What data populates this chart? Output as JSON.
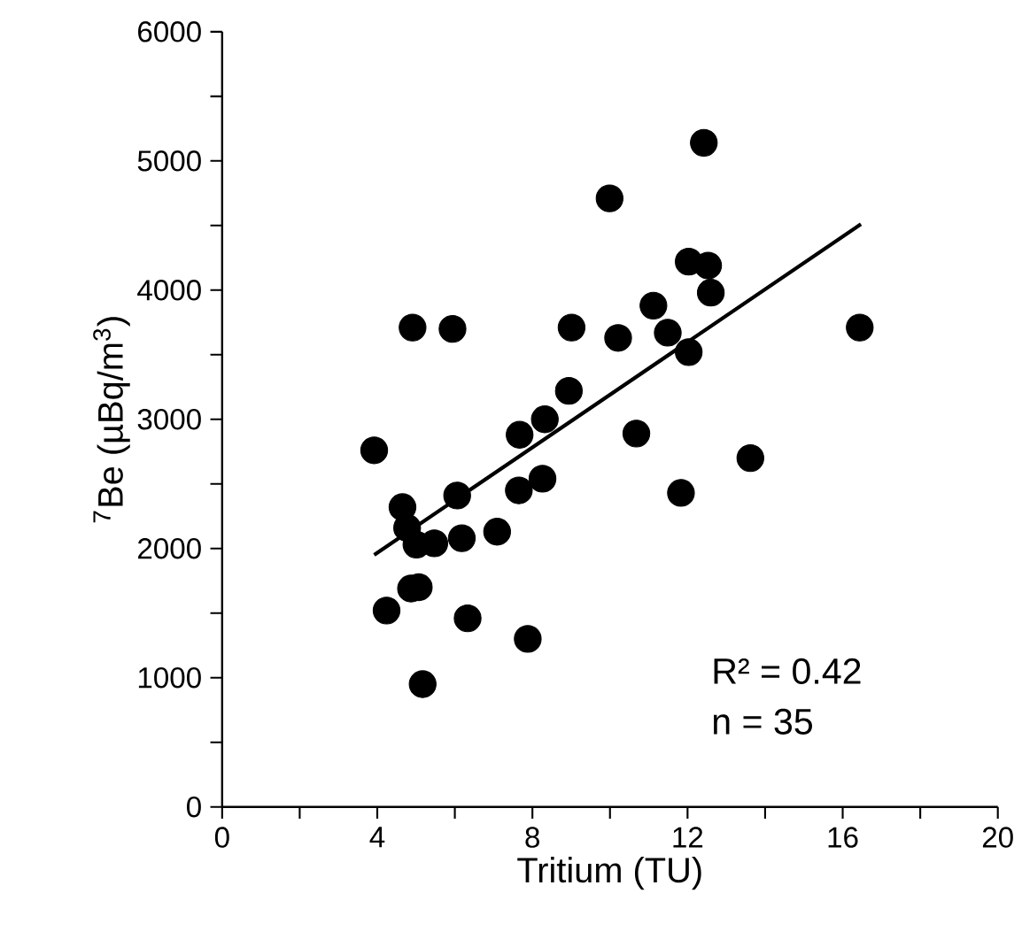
{
  "chart_data": {
    "type": "scatter",
    "xlabel": "Tritium (TU)",
    "ylabel": "$^{7}$Be (µBq/m$^{3}$)",
    "xlim": [
      0,
      20
    ],
    "ylim": [
      0,
      6000
    ],
    "xticks": [
      0,
      {
        "value": 2,
        "label": null
      },
      4,
      {
        "value": 6,
        "label": null
      },
      8,
      {
        "value": 10,
        "label": null
      },
      12,
      {
        "value": 14,
        "label": null
      },
      16,
      {
        "value": 18,
        "label": null
      },
      20
    ],
    "yticks": [
      0,
      {
        "value": 500,
        "label": null
      },
      1000,
      {
        "value": 1500,
        "label": null
      },
      2000,
      {
        "value": 2500,
        "label": null
      },
      3000,
      {
        "value": 3500,
        "label": null
      },
      4000,
      {
        "value": 4500,
        "label": null
      },
      5000,
      {
        "value": 5500,
        "label": null
      },
      6000
    ],
    "grid": false,
    "annotations": [
      "R² = 0.42",
      "n = 35"
    ],
    "series": [
      {
        "color": "#000000",
        "marker": "circle",
        "x": [
          3.92,
          4.91,
          5.94,
          4.65,
          4.77,
          5.01,
          5.47,
          6.06,
          6.18,
          7.09,
          4.87,
          5.07,
          4.24,
          6.33,
          5.17,
          7.88,
          7.67,
          8.32,
          7.65,
          8.26,
          8.94,
          9.01,
          9.99,
          10.21,
          12.42,
          12.03,
          12.53,
          12.6,
          11.12,
          11.49,
          12.03,
          16.44,
          10.68,
          13.62,
          11.83
        ],
        "values": [
          2760,
          3710,
          3700,
          2320,
          2160,
          2030,
          2040,
          2410,
          2080,
          2130,
          1690,
          1700,
          1520,
          1460,
          950,
          1300,
          2880,
          3000,
          2450,
          2540,
          3220,
          3710,
          4710,
          3630,
          5140,
          4220,
          4190,
          3980,
          3880,
          3670,
          3520,
          3710,
          2890,
          2700,
          2430
        ]
      },
      {
        "type": "line",
        "color": "#000000",
        "marker": "none",
        "x": [
          3.92,
          16.47
        ],
        "values": [
          1950,
          4510
        ]
      }
    ]
  }
}
